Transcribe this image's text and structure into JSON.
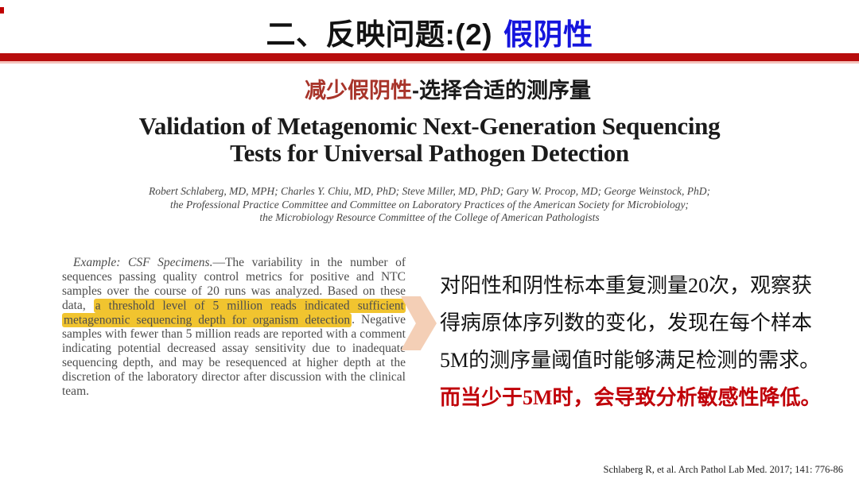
{
  "title": {
    "black_part": "二、反映问题:(2)",
    "blue_part": "假阴性"
  },
  "subtitle": {
    "red_part": "减少假阴性",
    "black_part": "-选择合适的测序量"
  },
  "paper": {
    "title_lines": [
      "Validation of Metagenomic Next-Generation Sequencing",
      "Tests for Universal Pathogen Detection"
    ],
    "author_lines": [
      "Robert Schlaberg, MD, MPH; Charles Y. Chiu, MD, PhD; Steve Miller, MD, PhD; Gary W. Procop, MD; George Weinstock, PhD;",
      "the Professional Practice Committee and Committee on Laboratory Practices of the American Society for Microbiology;",
      "the Microbiology Resource Committee of the College of American Pathologists"
    ]
  },
  "excerpt": {
    "lead_italic": "Example: CSF Specimens.",
    "before_highlight": "—The variability in the number of sequences passing quality control metrics for positive and NTC samples over the course of 20 runs was analyzed. Based on these data, ",
    "highlighted": "a threshold level of 5 million reads indicated sufficient metagenomic sequencing depth for organism detection",
    "after_highlight": ". Negative samples with fewer than 5 million reads are reported with a comment indicating potential decreased assay sensitivity due to inadequate sequencing depth, and may be resequenced at higher depth at the discretion of the laboratory director after discussion with the clinical team."
  },
  "summary": {
    "lines": [
      "对阳性和阴性标本重复测量20次，观察获",
      "得病原体序列数的变化，发现在每个样本",
      "5M的测序量阈值时能够满足检测的需求。"
    ],
    "red_line": "而当少于5M时，会导致分析敏感性降低。"
  },
  "citation": "Schlaberg R, et al. Arch Pathol Lab Med. 2017; 141: 776-86",
  "colors": {
    "divider_red": "#b70d0d",
    "title_blue": "#1515dd",
    "subtitle_red": "#a8342a",
    "warning_red": "#c00008",
    "highlight_yellow": "#f1c42f",
    "arrow_peach": "#f4cfb6"
  }
}
